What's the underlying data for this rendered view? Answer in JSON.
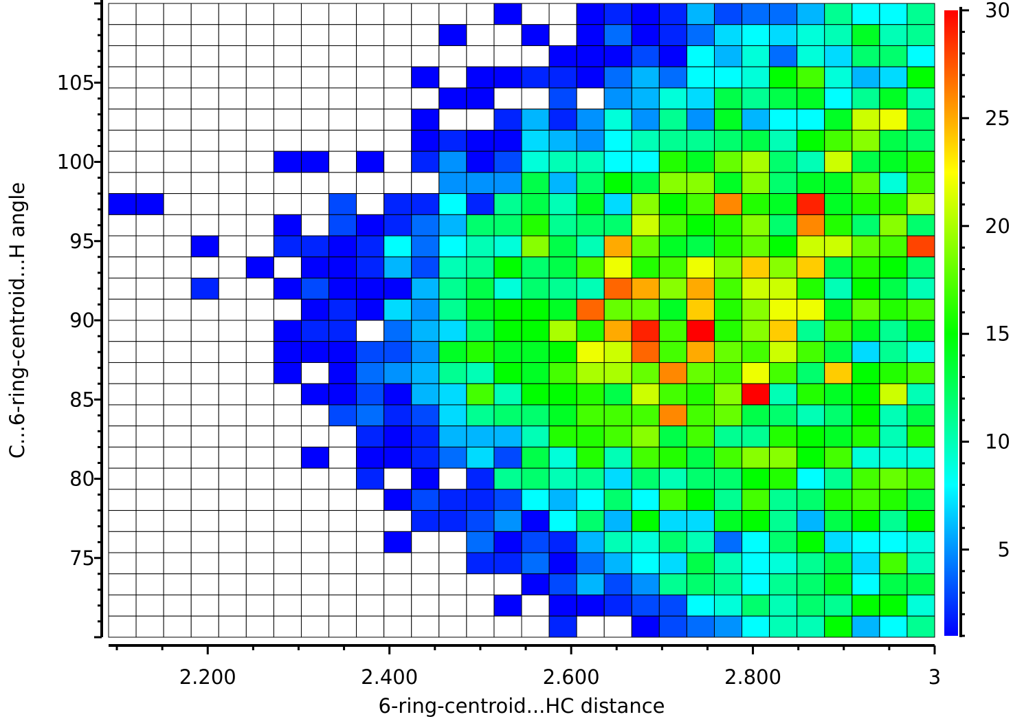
{
  "chart_data": {
    "type": "heatmap",
    "title": "",
    "xlabel": "6-ring-centroid...HC distance",
    "ylabel": "C...6-ring-centroid...H angle",
    "xlim": [
      2.0909,
      3.0
    ],
    "ylim": [
      70,
      110
    ],
    "x_ticks": [
      {
        "value": 2.2,
        "label": "2.200"
      },
      {
        "value": 2.4,
        "label": "2.400"
      },
      {
        "value": 2.6,
        "label": "2.600"
      },
      {
        "value": 2.8,
        "label": "2.800"
      },
      {
        "value": 3.0,
        "label": "3"
      }
    ],
    "x_minor_step": 0.05,
    "y_ticks": [
      {
        "value": 75,
        "label": "75"
      },
      {
        "value": 80,
        "label": "80"
      },
      {
        "value": 85,
        "label": "85"
      },
      {
        "value": 90,
        "label": "90"
      },
      {
        "value": 95,
        "label": "95"
      },
      {
        "value": 100,
        "label": "100"
      },
      {
        "value": 105,
        "label": "105"
      }
    ],
    "y_minor_step": 1,
    "colorbar": {
      "range": [
        1,
        30
      ],
      "colormap": "jet",
      "ticks": [
        {
          "value": 5,
          "label": "5"
        },
        {
          "value": 10,
          "label": "10"
        },
        {
          "value": 15,
          "label": "15"
        },
        {
          "value": 20,
          "label": "20"
        },
        {
          "value": 25,
          "label": "25"
        },
        {
          "value": 30,
          "label": "30"
        }
      ],
      "minor_step": 1,
      "stops": [
        "#0000ff",
        "#00ffff",
        "#00ff00",
        "#ffff00",
        "#ff0000"
      ]
    },
    "grid": true,
    "empty_color": "#ffffff",
    "n_cols": 30,
    "n_rows": 30,
    "row_order": "top-to-bottom",
    "values": [
      [
        null,
        null,
        null,
        null,
        null,
        null,
        null,
        null,
        null,
        null,
        null,
        null,
        null,
        null,
        1,
        null,
        null,
        1,
        2,
        1,
        2,
        6,
        3,
        4,
        4,
        6,
        11,
        8,
        8,
        11
      ],
      [
        null,
        null,
        null,
        null,
        null,
        null,
        null,
        null,
        null,
        null,
        null,
        null,
        1,
        null,
        null,
        1,
        null,
        1,
        4,
        1,
        2,
        4,
        7,
        8,
        7,
        9,
        10,
        14,
        10,
        11
      ],
      [
        null,
        null,
        null,
        null,
        null,
        null,
        null,
        null,
        null,
        null,
        null,
        null,
        null,
        null,
        null,
        null,
        1,
        1,
        1,
        3,
        1,
        8,
        6,
        9,
        4,
        9,
        7,
        12,
        12,
        8
      ],
      [
        null,
        null,
        null,
        null,
        null,
        null,
        null,
        null,
        null,
        null,
        null,
        1,
        null,
        1,
        1,
        2,
        2,
        1,
        4,
        6,
        4,
        8,
        8,
        9,
        15,
        17,
        9,
        6,
        7,
        15
      ],
      [
        null,
        null,
        null,
        null,
        null,
        null,
        null,
        null,
        null,
        null,
        null,
        null,
        1,
        1,
        null,
        null,
        3,
        null,
        5,
        6,
        9,
        7,
        13,
        11,
        13,
        14,
        8,
        11,
        14,
        10
      ],
      [
        null,
        null,
        null,
        null,
        null,
        null,
        null,
        null,
        null,
        null,
        null,
        1,
        null,
        null,
        2,
        6,
        2,
        5,
        9,
        5,
        11,
        5,
        14,
        6,
        8,
        8,
        14,
        21,
        22,
        12
      ],
      [
        null,
        null,
        null,
        null,
        null,
        null,
        null,
        null,
        null,
        null,
        null,
        1,
        2,
        1,
        1,
        7,
        6,
        5,
        8,
        10,
        11,
        11,
        12,
        13,
        10,
        15,
        17,
        19,
        13,
        12
      ],
      [
        null,
        null,
        null,
        null,
        null,
        null,
        1,
        1,
        null,
        1,
        null,
        2,
        5,
        1,
        3,
        9,
        10,
        10,
        8,
        8,
        16,
        14,
        18,
        20,
        12,
        10,
        21,
        13,
        14,
        16
      ],
      [
        null,
        null,
        null,
        null,
        null,
        null,
        null,
        null,
        null,
        null,
        null,
        null,
        5,
        5,
        5,
        13,
        6,
        12,
        15,
        13,
        19,
        19,
        14,
        19,
        12,
        14,
        14,
        18,
        9,
        17
      ],
      [
        1,
        1,
        null,
        null,
        null,
        null,
        null,
        null,
        3,
        null,
        2,
        2,
        8,
        2,
        11,
        13,
        10,
        14,
        7,
        19,
        15,
        17,
        26,
        16,
        14,
        29,
        14,
        16,
        16,
        20
      ],
      [
        null,
        null,
        null,
        null,
        null,
        null,
        1,
        null,
        3,
        1,
        2,
        4,
        6,
        12,
        12,
        16,
        11,
        12,
        12,
        21,
        17,
        15,
        16,
        19,
        12,
        26,
        16,
        12,
        19,
        12
      ],
      [
        null,
        null,
        null,
        1,
        null,
        null,
        2,
        2,
        1,
        2,
        8,
        4,
        8,
        10,
        9,
        19,
        13,
        10,
        25,
        18,
        14,
        13,
        16,
        18,
        15,
        21,
        21,
        18,
        17,
        28
      ],
      [
        null,
        null,
        null,
        null,
        null,
        1,
        null,
        1,
        1,
        2,
        6,
        3,
        10,
        11,
        15,
        12,
        13,
        17,
        22,
        16,
        17,
        22,
        19,
        24,
        19,
        24,
        13,
        16,
        15,
        12
      ],
      [
        null,
        null,
        null,
        2,
        null,
        null,
        1,
        3,
        1,
        1,
        1,
        6,
        11,
        13,
        9,
        12,
        11,
        10,
        27,
        25,
        19,
        25,
        17,
        21,
        21,
        16,
        10,
        15,
        13,
        10
      ],
      [
        null,
        null,
        null,
        null,
        null,
        null,
        null,
        1,
        2,
        1,
        7,
        5,
        11,
        14,
        15,
        15,
        14,
        27,
        18,
        18,
        14,
        24,
        16,
        19,
        22,
        22,
        14,
        18,
        16,
        17
      ],
      [
        null,
        null,
        null,
        null,
        null,
        null,
        1,
        2,
        2,
        null,
        4,
        6,
        7,
        12,
        15,
        15,
        20,
        16,
        25,
        29,
        17,
        30,
        16,
        19,
        24,
        11,
        17,
        14,
        11,
        14
      ],
      [
        null,
        null,
        null,
        null,
        null,
        null,
        1,
        1,
        1,
        3,
        3,
        5,
        14,
        16,
        14,
        14,
        15,
        22,
        21,
        27,
        17,
        25,
        18,
        17,
        21,
        17,
        13,
        7,
        11,
        9
      ],
      [
        null,
        null,
        null,
        null,
        null,
        null,
        1,
        null,
        1,
        4,
        5,
        6,
        11,
        10,
        15,
        14,
        17,
        20,
        20,
        18,
        26,
        18,
        17,
        22,
        17,
        12,
        24,
        15,
        16,
        17
      ],
      [
        null,
        null,
        null,
        null,
        null,
        null,
        null,
        1,
        1,
        3,
        1,
        6,
        7,
        17,
        10,
        15,
        15,
        16,
        13,
        21,
        17,
        16,
        19,
        30,
        10,
        16,
        14,
        15,
        21,
        10
      ],
      [
        null,
        null,
        null,
        null,
        null,
        null,
        null,
        null,
        3,
        4,
        2,
        3,
        7,
        11,
        12,
        12,
        14,
        17,
        17,
        17,
        26,
        17,
        18,
        13,
        12,
        10,
        12,
        15,
        10,
        13
      ],
      [
        null,
        null,
        null,
        null,
        null,
        null,
        null,
        null,
        null,
        2,
        1,
        2,
        6,
        6,
        6,
        10,
        16,
        16,
        17,
        19,
        13,
        17,
        11,
        11,
        16,
        15,
        14,
        16,
        10,
        16
      ],
      [
        null,
        null,
        null,
        null,
        null,
        null,
        null,
        1,
        null,
        1,
        1,
        2,
        4,
        7,
        3,
        13,
        9,
        16,
        10,
        17,
        16,
        13,
        17,
        19,
        19,
        15,
        17,
        9,
        9,
        9
      ],
      [
        null,
        null,
        null,
        null,
        null,
        null,
        null,
        null,
        null,
        2,
        null,
        1,
        null,
        2,
        11,
        12,
        10,
        11,
        7,
        12,
        10,
        12,
        12,
        15,
        16,
        8,
        11,
        17,
        18,
        17
      ],
      [
        null,
        null,
        null,
        null,
        null,
        null,
        null,
        null,
        null,
        null,
        1,
        3,
        2,
        2,
        3,
        8,
        6,
        8,
        12,
        8,
        17,
        15,
        11,
        17,
        11,
        12,
        16,
        17,
        16,
        13
      ],
      [
        null,
        null,
        null,
        null,
        null,
        null,
        null,
        null,
        null,
        null,
        null,
        2,
        2,
        3,
        5,
        1,
        8,
        12,
        6,
        15,
        7,
        7,
        14,
        15,
        11,
        6,
        13,
        15,
        11,
        15
      ],
      [
        null,
        null,
        null,
        null,
        null,
        null,
        null,
        null,
        null,
        null,
        1,
        null,
        null,
        4,
        1,
        3,
        2,
        6,
        10,
        9,
        12,
        10,
        4,
        8,
        12,
        15,
        7,
        8,
        8,
        9
      ],
      [
        null,
        null,
        null,
        null,
        null,
        null,
        null,
        null,
        null,
        null,
        null,
        null,
        null,
        2,
        2,
        4,
        1,
        4,
        6,
        8,
        7,
        13,
        10,
        8,
        9,
        11,
        13,
        7,
        17,
        10
      ],
      [
        null,
        null,
        null,
        null,
        null,
        null,
        null,
        null,
        null,
        null,
        null,
        null,
        null,
        null,
        null,
        1,
        3,
        6,
        3,
        5,
        11,
        12,
        11,
        8,
        11,
        12,
        14,
        8,
        13,
        13
      ],
      [
        null,
        null,
        null,
        null,
        null,
        null,
        null,
        null,
        null,
        null,
        null,
        null,
        null,
        null,
        1,
        null,
        1,
        1,
        2,
        3,
        3,
        8,
        9,
        12,
        10,
        12,
        11,
        15,
        15,
        9
      ],
      [
        null,
        null,
        null,
        null,
        null,
        null,
        null,
        null,
        null,
        null,
        null,
        null,
        null,
        null,
        null,
        null,
        2,
        null,
        null,
        1,
        3,
        4,
        5,
        8,
        10,
        10,
        15,
        6,
        8,
        11
      ]
    ]
  }
}
